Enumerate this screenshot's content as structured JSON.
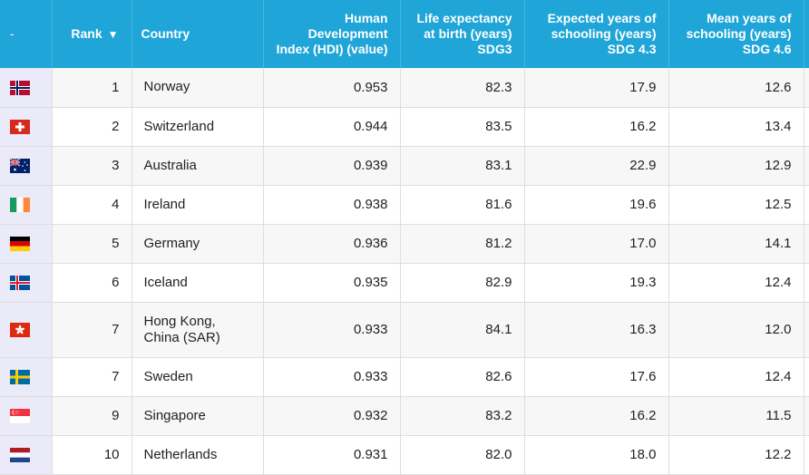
{
  "header": {
    "dash": "-",
    "rank": "Rank",
    "sort_icon": "▼",
    "country": "Country",
    "hdi": "Human Development Index (HDI) (value)",
    "life": "Life expectancy at birth (years) SDG3",
    "expected": "Expected years of schooling (years) SDG 4.3",
    "mean": "Mean years of schooling (years) SDG 4.6"
  },
  "rows": [
    {
      "flag": "norway-flag",
      "rank": "1",
      "country": "Norway",
      "hdi": "0.953",
      "life": "82.3",
      "expected": "17.9",
      "mean": "12.6"
    },
    {
      "flag": "switzerland-flag",
      "rank": "2",
      "country": "Switzerland",
      "hdi": "0.944",
      "life": "83.5",
      "expected": "16.2",
      "mean": "13.4"
    },
    {
      "flag": "australia-flag",
      "rank": "3",
      "country": "Australia",
      "hdi": "0.939",
      "life": "83.1",
      "expected": "22.9",
      "mean": "12.9"
    },
    {
      "flag": "ireland-flag",
      "rank": "4",
      "country": "Ireland",
      "hdi": "0.938",
      "life": "81.6",
      "expected": "19.6",
      "mean": "12.5"
    },
    {
      "flag": "germany-flag",
      "rank": "5",
      "country": "Germany",
      "hdi": "0.936",
      "life": "81.2",
      "expected": "17.0",
      "mean": "14.1"
    },
    {
      "flag": "iceland-flag",
      "rank": "6",
      "country": "Iceland",
      "hdi": "0.935",
      "life": "82.9",
      "expected": "19.3",
      "mean": "12.4"
    },
    {
      "flag": "hong-kong-flag",
      "rank": "7",
      "country": "Hong Kong, China (SAR)",
      "hdi": "0.933",
      "life": "84.1",
      "expected": "16.3",
      "mean": "12.0"
    },
    {
      "flag": "sweden-flag",
      "rank": "7",
      "country": "Sweden",
      "hdi": "0.933",
      "life": "82.6",
      "expected": "17.6",
      "mean": "12.4"
    },
    {
      "flag": "singapore-flag",
      "rank": "9",
      "country": "Singapore",
      "hdi": "0.932",
      "life": "83.2",
      "expected": "16.2",
      "mean": "11.5"
    },
    {
      "flag": "netherlands-flag",
      "rank": "10",
      "country": "Netherlands",
      "hdi": "0.931",
      "life": "82.0",
      "expected": "18.0",
      "mean": "12.2"
    }
  ],
  "colors": {
    "header_bg": "#1fa5d8",
    "flag_col_bg": "#eaeaf8",
    "row_alt_bg": "#f7f7f7"
  }
}
